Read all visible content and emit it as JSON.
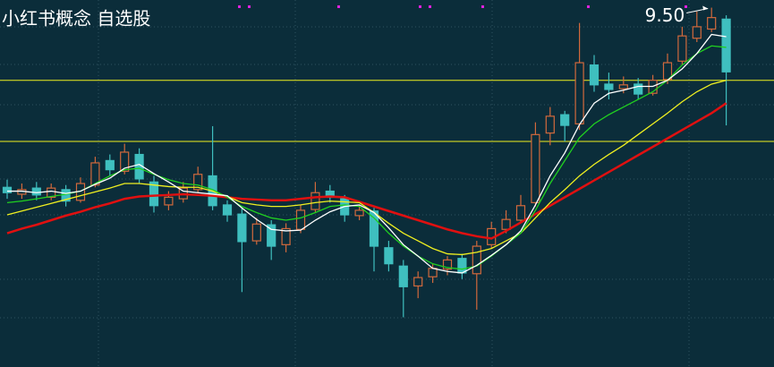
{
  "chart_data": {
    "type": "candlestick",
    "title": "小红书概念 自选股",
    "annotation": "9.50",
    "ylim": [
      4.8,
      9.6
    ],
    "up_color": "#d2693c",
    "down_color": "#3fbfbf",
    "open": [
      7.15,
      7.06,
      7.14,
      7.02,
      7.12,
      6.98,
      7.18,
      7.5,
      7.36,
      7.58,
      7.22,
      6.92,
      7.0,
      7.12,
      7.3,
      6.92,
      6.8,
      6.45,
      6.66,
      6.4,
      6.6,
      6.86,
      7.1,
      7.0,
      6.78,
      6.84,
      6.36,
      6.12,
      5.86,
      5.98,
      6.08,
      6.22,
      6.02,
      6.4,
      6.6,
      6.72,
      6.95,
      7.86,
      8.1,
      7.98,
      8.75,
      8.5,
      8.44,
      8.5,
      8.38,
      8.56,
      8.8,
      9.1,
      9.22,
      9.35
    ],
    "high": [
      7.25,
      7.2,
      7.22,
      7.2,
      7.18,
      7.28,
      7.55,
      7.58,
      7.72,
      7.66,
      7.3,
      7.1,
      7.22,
      7.42,
      7.95,
      6.98,
      6.88,
      6.75,
      6.72,
      6.68,
      6.92,
      7.22,
      7.18,
      7.05,
      6.92,
      6.88,
      6.45,
      6.2,
      6.05,
      6.15,
      6.25,
      6.28,
      6.45,
      6.7,
      6.85,
      7.05,
      8.0,
      8.2,
      8.15,
      9.3,
      8.88,
      8.65,
      8.6,
      8.58,
      8.62,
      8.9,
      9.25,
      9.45,
      9.5,
      9.4
    ],
    "low": [
      7.0,
      7.0,
      6.98,
      6.98,
      6.9,
      6.95,
      7.15,
      7.3,
      7.32,
      7.2,
      6.82,
      6.85,
      6.95,
      7.08,
      6.85,
      6.7,
      5.78,
      6.4,
      6.2,
      6.3,
      6.55,
      6.82,
      6.95,
      6.7,
      6.72,
      6.05,
      6.05,
      5.45,
      5.7,
      5.9,
      6.0,
      5.95,
      5.55,
      6.35,
      6.55,
      6.68,
      6.9,
      7.7,
      7.75,
      7.9,
      8.4,
      8.3,
      8.38,
      8.3,
      8.35,
      8.5,
      8.75,
      9.05,
      9.18,
      7.96
    ],
    "close": [
      7.08,
      7.12,
      7.05,
      7.14,
      6.97,
      7.2,
      7.47,
      7.38,
      7.61,
      7.26,
      6.91,
      7.02,
      7.14,
      7.32,
      6.91,
      6.79,
      6.44,
      6.67,
      6.38,
      6.61,
      6.85,
      7.08,
      7.02,
      6.79,
      6.85,
      6.38,
      6.15,
      5.85,
      5.97,
      6.09,
      6.2,
      6.03,
      6.38,
      6.61,
      6.73,
      6.91,
      7.84,
      8.08,
      7.96,
      8.78,
      8.49,
      8.43,
      8.49,
      8.37,
      8.55,
      8.78,
      9.13,
      9.25,
      9.37,
      8.66
    ],
    "series": [
      {
        "color": "#e01010",
        "values": [
          6.55,
          6.61,
          6.66,
          6.72,
          6.78,
          6.83,
          6.89,
          6.94,
          7.0,
          7.03,
          7.04,
          7.05,
          7.06,
          7.05,
          7.04,
          7.02,
          7.0,
          6.99,
          6.98,
          6.98,
          7.0,
          7.02,
          7.03,
          7.02,
          6.96,
          6.9,
          6.84,
          6.78,
          6.72,
          6.66,
          6.6,
          6.55,
          6.51,
          6.48,
          6.58,
          6.69,
          6.8,
          6.91,
          7.02,
          7.13,
          7.24,
          7.35,
          7.46,
          7.57,
          7.68,
          7.79,
          7.9,
          8.01,
          8.12,
          8.25
        ]
      },
      {
        "color": "#f0f020",
        "values": [
          6.79,
          6.84,
          6.89,
          6.94,
          6.99,
          7.04,
          7.09,
          7.14,
          7.2,
          7.2,
          7.18,
          7.16,
          7.15,
          7.15,
          7.1,
          7.03,
          6.95,
          6.92,
          6.9,
          6.9,
          6.92,
          6.95,
          6.97,
          6.96,
          6.95,
          6.82,
          6.68,
          6.55,
          6.45,
          6.35,
          6.28,
          6.27,
          6.3,
          6.35,
          6.45,
          6.55,
          6.75,
          6.95,
          7.12,
          7.3,
          7.45,
          7.58,
          7.7,
          7.84,
          7.98,
          8.12,
          8.27,
          8.4,
          8.5,
          8.55
        ]
      },
      {
        "color": "#20d020",
        "values": [
          6.95,
          6.97,
          7.0,
          7.03,
          7.06,
          7.1,
          7.2,
          7.3,
          7.38,
          7.4,
          7.32,
          7.25,
          7.2,
          7.18,
          7.12,
          7.02,
          6.9,
          6.82,
          6.75,
          6.72,
          6.75,
          6.82,
          6.9,
          6.92,
          6.9,
          6.75,
          6.55,
          6.38,
          6.25,
          6.15,
          6.1,
          6.08,
          6.12,
          6.25,
          6.4,
          6.55,
          6.85,
          7.2,
          7.5,
          7.8,
          7.98,
          8.1,
          8.2,
          8.3,
          8.4,
          8.55,
          8.75,
          8.9,
          9.0,
          8.98
        ]
      },
      {
        "color": "#ffffff",
        "values": [
          7.1,
          7.1,
          7.08,
          7.1,
          7.07,
          7.1,
          7.19,
          7.27,
          7.4,
          7.45,
          7.33,
          7.22,
          7.1,
          7.08,
          7.06,
          7.04,
          6.88,
          6.73,
          6.6,
          6.58,
          6.59,
          6.72,
          6.83,
          6.9,
          6.92,
          6.82,
          6.62,
          6.4,
          6.25,
          6.09,
          6.05,
          6.03,
          6.13,
          6.26,
          6.4,
          6.58,
          6.92,
          7.3,
          7.6,
          7.97,
          8.25,
          8.38,
          8.42,
          8.47,
          8.47,
          8.55,
          8.7,
          8.9,
          9.15,
          9.12
        ]
      }
    ],
    "levels": [
      8.55,
      7.75
    ],
    "level_color": "#f0f020"
  }
}
